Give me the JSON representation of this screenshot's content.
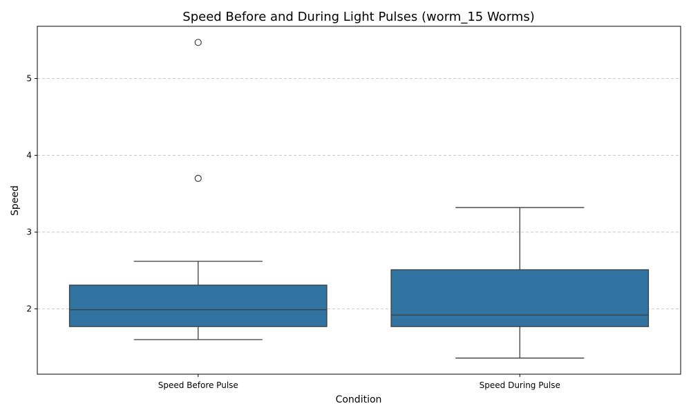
{
  "chart_data": {
    "type": "box",
    "title": "Speed Before and During Light Pulses (worm_15 Worms)",
    "xlabel": "Condition",
    "ylabel": "Speed",
    "categories": [
      "Speed Before Pulse",
      "Speed During Pulse"
    ],
    "boxes": [
      {
        "category": "Speed Before Pulse",
        "whisker_low": 1.6,
        "q1": 1.77,
        "median": 1.99,
        "q3": 2.31,
        "whisker_high": 2.62,
        "outliers": [
          3.7,
          5.47
        ]
      },
      {
        "category": "Speed During Pulse",
        "whisker_low": 1.36,
        "q1": 1.77,
        "median": 1.92,
        "q3": 2.51,
        "whisker_high": 3.32,
        "outliers": []
      }
    ],
    "yticks": [
      2,
      3,
      4,
      5
    ],
    "ylim": [
      1.15,
      5.68
    ],
    "grid": {
      "y": true,
      "x": false,
      "style": "dashed"
    },
    "colors": {
      "box_fill": "#3274a1",
      "box_edge": "#3d3d3d",
      "grid": "#c8c8c8"
    }
  }
}
